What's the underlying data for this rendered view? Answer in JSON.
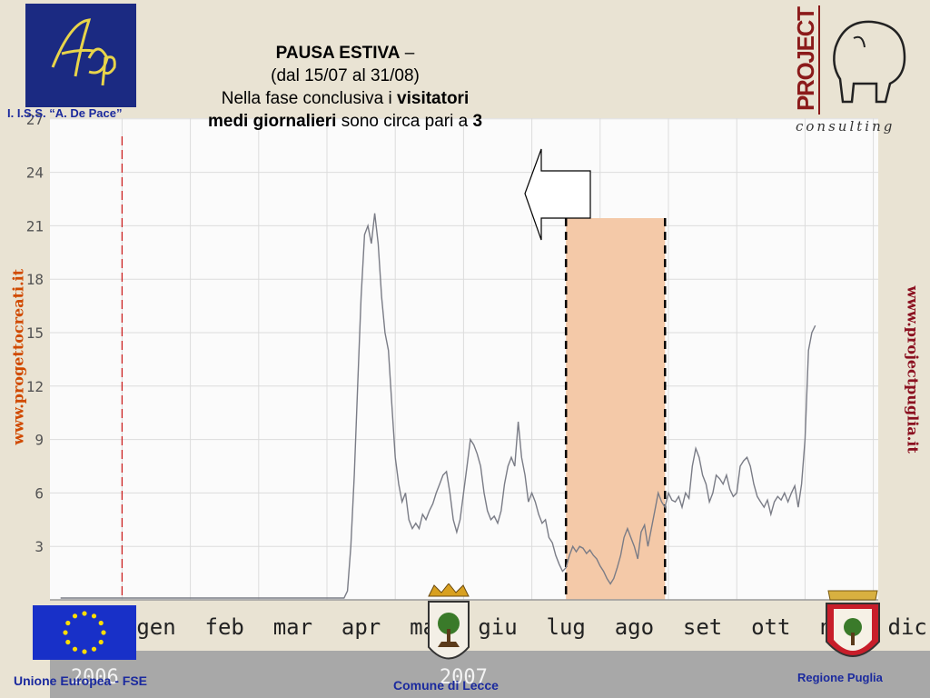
{
  "header": {
    "title_bold": "PAUSA ESTIVA",
    "title_dash": " –",
    "subtitle": "(dal 15/07 al 31/08)",
    "line3_plain": "Nella fase conclusiva i ",
    "line3_bold": "visitatori",
    "line4_bold": "medi giornalieri",
    "line4_plain": " sono circa pari a ",
    "line4_num": "3"
  },
  "logos": {
    "school_label": "I. I.S.S. “A. De Pace”",
    "left_url": "www.progettocreati.it",
    "right_url": "www.projectpuglia.it",
    "project_word": "PROJECT",
    "consulting_word": "consulting",
    "footer_eu": "Unione Europea - FSE",
    "footer_lecce": "Comune di Lecce",
    "footer_puglia": "Regione Puglia"
  },
  "colors": {
    "line": "#7a7c86",
    "highlight": "#f4c9a8",
    "red_marker": "#cc2222",
    "grid": "#dcdcdc"
  },
  "chart_data": {
    "type": "line",
    "yticks": [
      3,
      6,
      9,
      12,
      15,
      18,
      21,
      24,
      27
    ],
    "ylim": [
      0,
      27
    ],
    "xlim": [
      0,
      12.2
    ],
    "month_labels": [
      "gen",
      "feb",
      "mar",
      "apr",
      "mag",
      "giu",
      "lug",
      "ago",
      "set",
      "ott",
      "nov",
      "dic"
    ],
    "year_labels": [
      "2006",
      "2007"
    ],
    "highlight_range": [
      6.0,
      7.45
    ],
    "dashed_markers": [
      6.0,
      7.45
    ],
    "red_marker": -0.5,
    "series": [
      {
        "values": [
          [
            -1.4,
            0.1
          ],
          [
            2.75,
            0.1
          ],
          [
            2.8,
            0.5
          ],
          [
            2.85,
            3
          ],
          [
            2.9,
            7
          ],
          [
            2.95,
            12
          ],
          [
            3.0,
            17
          ],
          [
            3.05,
            20.5
          ],
          [
            3.1,
            21
          ],
          [
            3.15,
            20
          ],
          [
            3.2,
            21.7
          ],
          [
            3.25,
            20
          ],
          [
            3.3,
            17
          ],
          [
            3.35,
            15
          ],
          [
            3.4,
            14
          ],
          [
            3.45,
            11
          ],
          [
            3.5,
            8
          ],
          [
            3.55,
            6.5
          ],
          [
            3.6,
            5.5
          ],
          [
            3.65,
            6
          ],
          [
            3.7,
            4.5
          ],
          [
            3.75,
            4
          ],
          [
            3.8,
            4.3
          ],
          [
            3.85,
            4
          ],
          [
            3.9,
            4.8
          ],
          [
            3.95,
            4.5
          ],
          [
            4.0,
            5
          ],
          [
            4.05,
            5.4
          ],
          [
            4.1,
            6
          ],
          [
            4.15,
            6.5
          ],
          [
            4.2,
            7
          ],
          [
            4.25,
            7.2
          ],
          [
            4.3,
            6
          ],
          [
            4.35,
            4.5
          ],
          [
            4.4,
            3.8
          ],
          [
            4.45,
            4.5
          ],
          [
            4.5,
            6
          ],
          [
            4.55,
            7.5
          ],
          [
            4.6,
            9
          ],
          [
            4.65,
            8.7
          ],
          [
            4.7,
            8.2
          ],
          [
            4.75,
            7.5
          ],
          [
            4.8,
            6
          ],
          [
            4.85,
            5
          ],
          [
            4.9,
            4.5
          ],
          [
            4.95,
            4.7
          ],
          [
            5.0,
            4.3
          ],
          [
            5.05,
            5
          ],
          [
            5.1,
            6.5
          ],
          [
            5.15,
            7.5
          ],
          [
            5.2,
            8
          ],
          [
            5.25,
            7.5
          ],
          [
            5.3,
            10
          ],
          [
            5.35,
            8
          ],
          [
            5.4,
            7
          ],
          [
            5.45,
            5.5
          ],
          [
            5.5,
            6
          ],
          [
            5.55,
            5.5
          ],
          [
            5.6,
            4.8
          ],
          [
            5.65,
            4.3
          ],
          [
            5.7,
            4.5
          ],
          [
            5.75,
            3.5
          ],
          [
            5.8,
            3.2
          ],
          [
            5.85,
            2.5
          ],
          [
            5.9,
            2
          ],
          [
            5.95,
            1.6
          ],
          [
            6.0,
            1.8
          ],
          [
            6.05,
            2.5
          ],
          [
            6.1,
            3
          ],
          [
            6.15,
            2.7
          ],
          [
            6.2,
            3
          ],
          [
            6.25,
            2.9
          ],
          [
            6.3,
            2.6
          ],
          [
            6.35,
            2.8
          ],
          [
            6.4,
            2.5
          ],
          [
            6.45,
            2.3
          ],
          [
            6.5,
            1.9
          ],
          [
            6.55,
            1.6
          ],
          [
            6.6,
            1.2
          ],
          [
            6.65,
            0.9
          ],
          [
            6.7,
            1.2
          ],
          [
            6.75,
            1.8
          ],
          [
            6.8,
            2.5
          ],
          [
            6.85,
            3.5
          ],
          [
            6.9,
            4
          ],
          [
            6.95,
            3.5
          ],
          [
            7.0,
            3
          ],
          [
            7.05,
            2.3
          ],
          [
            7.1,
            3.8
          ],
          [
            7.15,
            4.2
          ],
          [
            7.2,
            3
          ],
          [
            7.25,
            4
          ],
          [
            7.3,
            5
          ],
          [
            7.35,
            6
          ],
          [
            7.4,
            5.5
          ],
          [
            7.45,
            5.2
          ],
          [
            7.5,
            6
          ],
          [
            7.55,
            5.6
          ],
          [
            7.6,
            5.5
          ],
          [
            7.65,
            5.8
          ],
          [
            7.7,
            5.2
          ],
          [
            7.75,
            6
          ],
          [
            7.8,
            5.7
          ],
          [
            7.85,
            7.5
          ],
          [
            7.9,
            8.5
          ],
          [
            7.95,
            8
          ],
          [
            8.0,
            7
          ],
          [
            8.05,
            6.5
          ],
          [
            8.1,
            5.5
          ],
          [
            8.15,
            6
          ],
          [
            8.2,
            7
          ],
          [
            8.25,
            6.8
          ],
          [
            8.3,
            6.5
          ],
          [
            8.35,
            7
          ],
          [
            8.4,
            6.2
          ],
          [
            8.45,
            5.8
          ],
          [
            8.5,
            6
          ],
          [
            8.55,
            7.5
          ],
          [
            8.6,
            7.8
          ],
          [
            8.65,
            8
          ],
          [
            8.7,
            7.5
          ],
          [
            8.75,
            6.5
          ],
          [
            8.8,
            5.8
          ],
          [
            8.85,
            5.5
          ],
          [
            8.9,
            5.2
          ],
          [
            8.95,
            5.6
          ],
          [
            9.0,
            4.8
          ],
          [
            9.05,
            5.5
          ],
          [
            9.1,
            5.8
          ],
          [
            9.15,
            5.6
          ],
          [
            9.2,
            6
          ],
          [
            9.25,
            5.5
          ],
          [
            9.3,
            6
          ],
          [
            9.35,
            6.4
          ],
          [
            9.4,
            5.2
          ],
          [
            9.45,
            6.5
          ],
          [
            9.5,
            9
          ],
          [
            9.55,
            14
          ],
          [
            9.6,
            15
          ],
          [
            9.65,
            15.4
          ]
        ]
      }
    ]
  }
}
